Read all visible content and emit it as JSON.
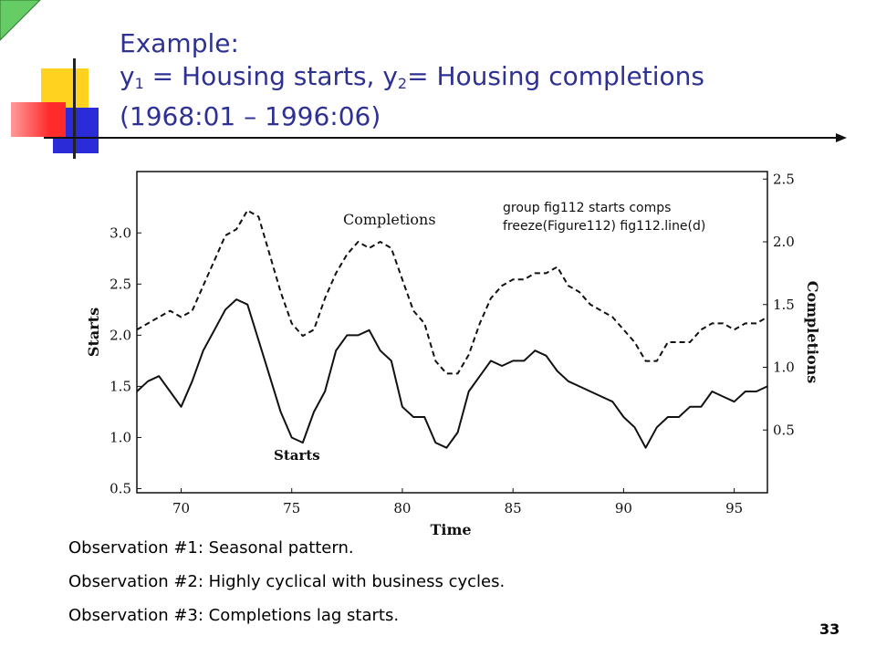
{
  "slide": {
    "title_line1": "Example:",
    "title_line2_parts": [
      "y",
      "1",
      " = Housing starts, y",
      "2",
      "= Housing completions"
    ],
    "title_line3": "(1968:01 – 1996:06)",
    "code_note": [
      "group fig112 starts comps",
      "freeze(Figure112) fig112.line(d)"
    ],
    "observations": [
      "Observation #1: Seasonal pattern.",
      "Observation #2: Highly cyclical with business cycles.",
      "Observation #3: Completions lag starts."
    ],
    "page_number": "33"
  },
  "colors": {
    "title": "#2e3192",
    "deco_yellow": "#ffd21f",
    "deco_red": "#ff3c3c",
    "deco_blue": "#2b2bd8",
    "deco_green": "#66cc66"
  },
  "chart_data": {
    "type": "line",
    "xlabel": "Time",
    "ylabel_left": "Starts",
    "ylabel_right": "Completions",
    "x_ticks": [
      "70",
      "75",
      "80",
      "85",
      "90",
      "95"
    ],
    "x_tick_values": [
      1970,
      1975,
      1980,
      1985,
      1990,
      1995
    ],
    "xlim": [
      1968.0,
      1996.5
    ],
    "left_axis": {
      "ticks": [
        "0.5",
        "1.0",
        "1.5",
        "2.0",
        "2.5",
        "3.0"
      ],
      "tick_values": [
        0.5,
        1.0,
        1.5,
        2.0,
        2.5,
        3.0
      ],
      "ylim": [
        0.46,
        3.6
      ]
    },
    "right_axis": {
      "ticks": [
        "0.5",
        "1.0",
        "1.5",
        "2.0",
        "2.5"
      ],
      "tick_values": [
        0.5,
        1.0,
        1.5,
        2.0,
        2.5
      ],
      "ylim": [
        0.0,
        2.56
      ]
    },
    "annotations": [
      "Completions",
      "Starts"
    ],
    "series": [
      {
        "name": "Starts",
        "axis": "left",
        "style": "solid",
        "x": [
          1968.0,
          1968.5,
          1969.0,
          1969.5,
          1970.0,
          1970.5,
          1971.0,
          1971.5,
          1972.0,
          1972.5,
          1973.0,
          1973.5,
          1974.0,
          1974.5,
          1975.0,
          1975.5,
          1976.0,
          1976.5,
          1977.0,
          1977.5,
          1978.0,
          1978.5,
          1979.0,
          1979.5,
          1980.0,
          1980.5,
          1981.0,
          1981.5,
          1982.0,
          1982.5,
          1983.0,
          1983.5,
          1984.0,
          1984.5,
          1985.0,
          1985.5,
          1986.0,
          1986.5,
          1987.0,
          1987.5,
          1988.0,
          1988.5,
          1989.0,
          1989.5,
          1990.0,
          1990.5,
          1991.0,
          1991.5,
          1992.0,
          1992.5,
          1993.0,
          1993.5,
          1994.0,
          1994.5,
          1995.0,
          1995.5,
          1996.0,
          1996.5
        ],
        "y": [
          1.45,
          1.55,
          1.6,
          1.45,
          1.3,
          1.55,
          1.85,
          2.05,
          2.25,
          2.35,
          2.3,
          1.95,
          1.6,
          1.25,
          1.0,
          0.95,
          1.25,
          1.45,
          1.85,
          2.0,
          2.0,
          2.05,
          1.85,
          1.75,
          1.3,
          1.2,
          1.2,
          0.95,
          0.9,
          1.05,
          1.45,
          1.6,
          1.75,
          1.7,
          1.75,
          1.75,
          1.85,
          1.8,
          1.65,
          1.55,
          1.5,
          1.45,
          1.4,
          1.35,
          1.2,
          1.1,
          0.9,
          1.1,
          1.2,
          1.2,
          1.3,
          1.3,
          1.45,
          1.4,
          1.35,
          1.45,
          1.45,
          1.5
        ]
      },
      {
        "name": "Completions",
        "axis": "right",
        "style": "dashed",
        "x": [
          1968.0,
          1968.5,
          1969.0,
          1969.5,
          1970.0,
          1970.5,
          1971.0,
          1971.5,
          1972.0,
          1972.5,
          1973.0,
          1973.5,
          1974.0,
          1974.5,
          1975.0,
          1975.5,
          1976.0,
          1976.5,
          1977.0,
          1977.5,
          1978.0,
          1978.5,
          1979.0,
          1979.5,
          1980.0,
          1980.5,
          1981.0,
          1981.5,
          1982.0,
          1982.5,
          1983.0,
          1983.5,
          1984.0,
          1984.5,
          1985.0,
          1985.5,
          1986.0,
          1986.5,
          1987.0,
          1987.5,
          1988.0,
          1988.5,
          1989.0,
          1989.5,
          1990.0,
          1990.5,
          1991.0,
          1991.5,
          1992.0,
          1992.5,
          1993.0,
          1993.5,
          1994.0,
          1994.5,
          1995.0,
          1995.5,
          1996.0,
          1996.5
        ],
        "y": [
          1.3,
          1.35,
          1.4,
          1.45,
          1.4,
          1.45,
          1.65,
          1.85,
          2.05,
          2.1,
          2.25,
          2.2,
          1.9,
          1.6,
          1.35,
          1.25,
          1.3,
          1.55,
          1.75,
          1.9,
          2.0,
          1.95,
          2.0,
          1.95,
          1.7,
          1.45,
          1.35,
          1.05,
          0.95,
          0.95,
          1.1,
          1.35,
          1.55,
          1.65,
          1.7,
          1.7,
          1.75,
          1.75,
          1.8,
          1.65,
          1.6,
          1.5,
          1.45,
          1.4,
          1.3,
          1.2,
          1.05,
          1.05,
          1.2,
          1.2,
          1.2,
          1.3,
          1.35,
          1.35,
          1.3,
          1.35,
          1.35,
          1.4
        ]
      }
    ]
  }
}
